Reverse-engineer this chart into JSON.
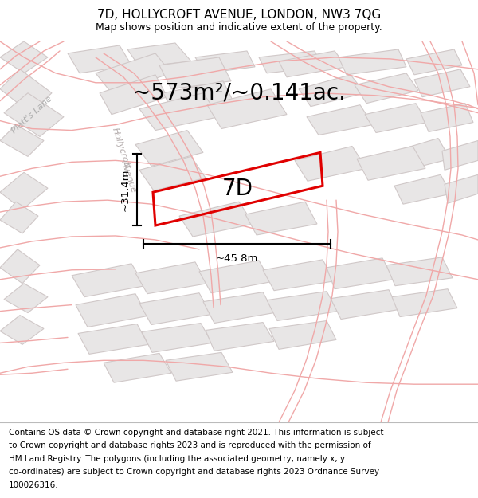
{
  "title": "7D, HOLLYCROFT AVENUE, LONDON, NW3 7QG",
  "subtitle": "Map shows position and indicative extent of the property.",
  "footer_lines": [
    "Contains OS data © Crown copyright and database right 2021. This information is subject",
    "to Crown copyright and database rights 2023 and is reproduced with the permission of",
    "HM Land Registry. The polygons (including the associated geometry, namely x, y",
    "co-ordinates) are subject to Crown copyright and database rights 2023 Ordnance Survey",
    "100026316."
  ],
  "area_text": "~573m²/~0.141ac.",
  "label_7d": "7D",
  "dim_vertical": "~31.4m",
  "dim_horizontal": "~45.8m",
  "street_label1": "Platt's Lane",
  "street_label2": "Hollycroft\nAvenue",
  "map_bg": "#f7f6f6",
  "road_color": "#f0a8a8",
  "building_fill": "#e8e6e6",
  "building_edge": "#d0c8c8",
  "property_color": "#e00000",
  "title_fontsize": 11,
  "subtitle_fontsize": 9,
  "footer_fontsize": 7.5,
  "area_fontsize": 20,
  "label_fontsize": 20,
  "dim_fontsize": 9.5,
  "street_fontsize": 8
}
